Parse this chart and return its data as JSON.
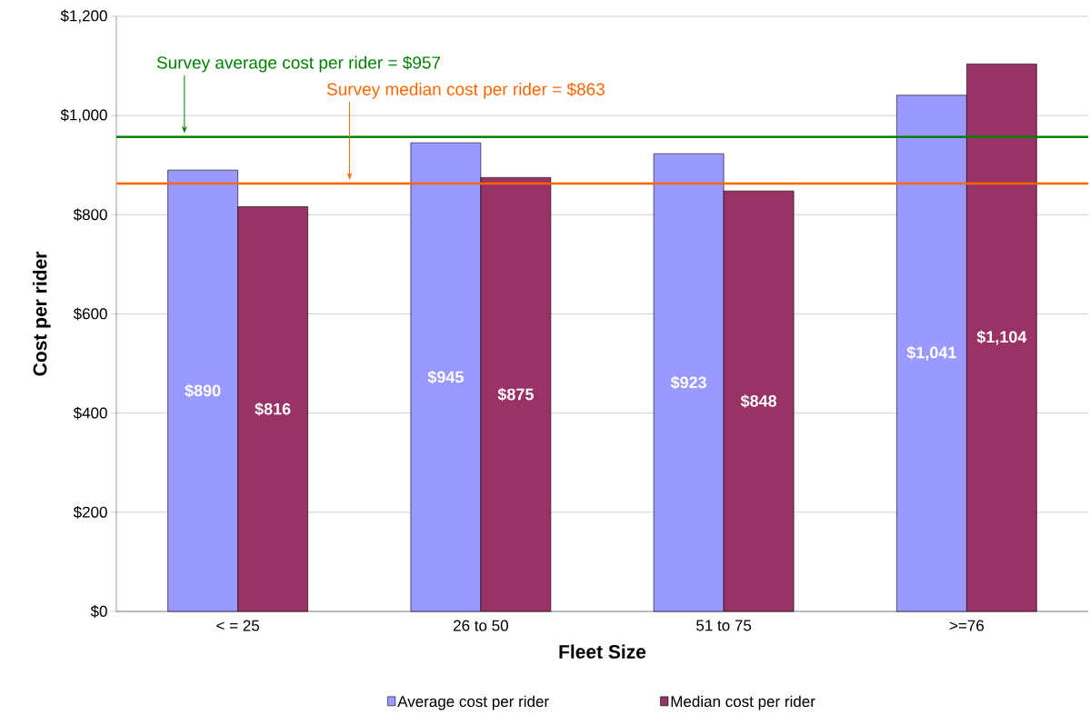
{
  "chart_data": {
    "type": "bar",
    "xlabel": "Fleet Size",
    "ylabel": "Cost per rider",
    "categories": [
      "< = 25",
      "26 to 50",
      "51 to 75",
      ">=76"
    ],
    "series": [
      {
        "name": "Average cost per rider",
        "color": "#9999ff",
        "values": [
          890,
          945,
          923,
          1041
        ],
        "value_labels": [
          "$890",
          "$945",
          "$923",
          "$1,041"
        ]
      },
      {
        "name": "Median cost per rider",
        "color": "#993366",
        "values": [
          816,
          875,
          848,
          1104
        ],
        "value_labels": [
          "$816",
          "$875",
          "$848",
          "$1,104"
        ]
      }
    ],
    "ylim": [
      0,
      1200
    ],
    "yticks": [
      {
        "value": 0,
        "label": "$0"
      },
      {
        "value": 200,
        "label": "$200"
      },
      {
        "value": 400,
        "label": "$400"
      },
      {
        "value": 600,
        "label": "$600"
      },
      {
        "value": 800,
        "label": "$800"
      },
      {
        "value": 1000,
        "label": "$1,000"
      },
      {
        "value": 1200,
        "label": "$1,200"
      }
    ],
    "ref_lines": [
      {
        "axis": "y",
        "value": 957,
        "label": "Survey average cost per rider = $957",
        "color": "#008000"
      },
      {
        "axis": "y",
        "value": 863,
        "label": "Survey median cost per rider = $863",
        "color": "#ff6600"
      }
    ],
    "grid": "y",
    "legend": "bottom"
  }
}
